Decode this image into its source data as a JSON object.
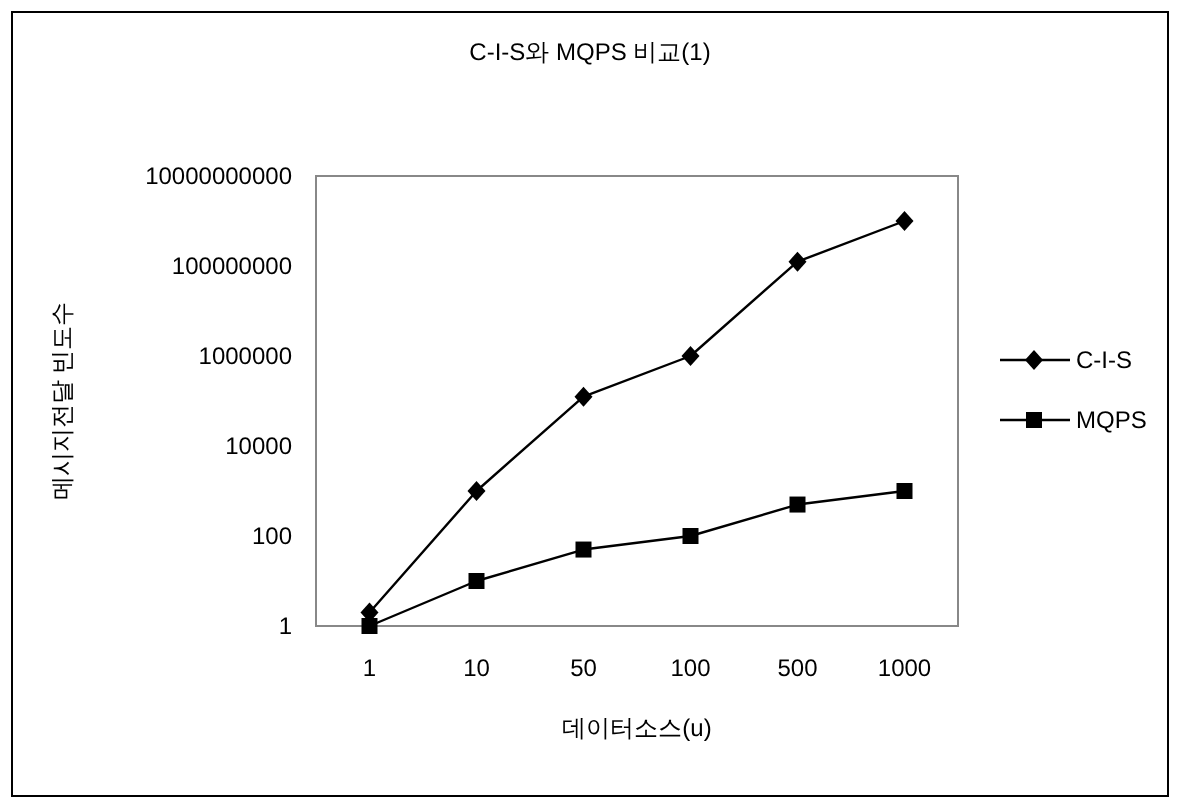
{
  "chart_data": {
    "type": "line",
    "title": "C-I-S와 MQPS 비교(1)",
    "xlabel": "데이터소스(u)",
    "ylabel": "메시지전달 빈도수",
    "categories": [
      "1",
      "10",
      "50",
      "100",
      "500",
      "1000"
    ],
    "series": [
      {
        "name": "C-I-S",
        "color": "#000000",
        "marker": "diamond",
        "values": [
          2,
          1000,
          125000,
          1000000,
          125000000,
          1000000000
        ]
      },
      {
        "name": "MQPS",
        "color": "#000000",
        "marker": "square",
        "values": [
          1,
          10,
          50,
          100,
          500,
          1000
        ]
      }
    ],
    "log": "y",
    "ylim": [
      1,
      10000000000
    ],
    "yticks": [
      1,
      100,
      10000,
      1000000,
      100000000,
      10000000000
    ],
    "grid": false,
    "legend": "right"
  }
}
